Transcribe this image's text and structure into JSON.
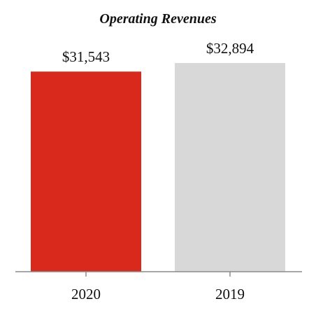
{
  "chart_data": {
    "type": "bar",
    "title": "Operating Revenues",
    "categories": [
      "2020",
      "2019"
    ],
    "values": [
      31543,
      32894
    ],
    "value_labels": [
      "$31,543",
      "$32,894"
    ],
    "colors": [
      "#d9291c",
      "#d7d8d7"
    ],
    "axis_color": "#8a8a8a",
    "xlabel": "",
    "ylabel": "",
    "ylim": [
      0,
      35000
    ],
    "grid": false,
    "legend": "none"
  }
}
